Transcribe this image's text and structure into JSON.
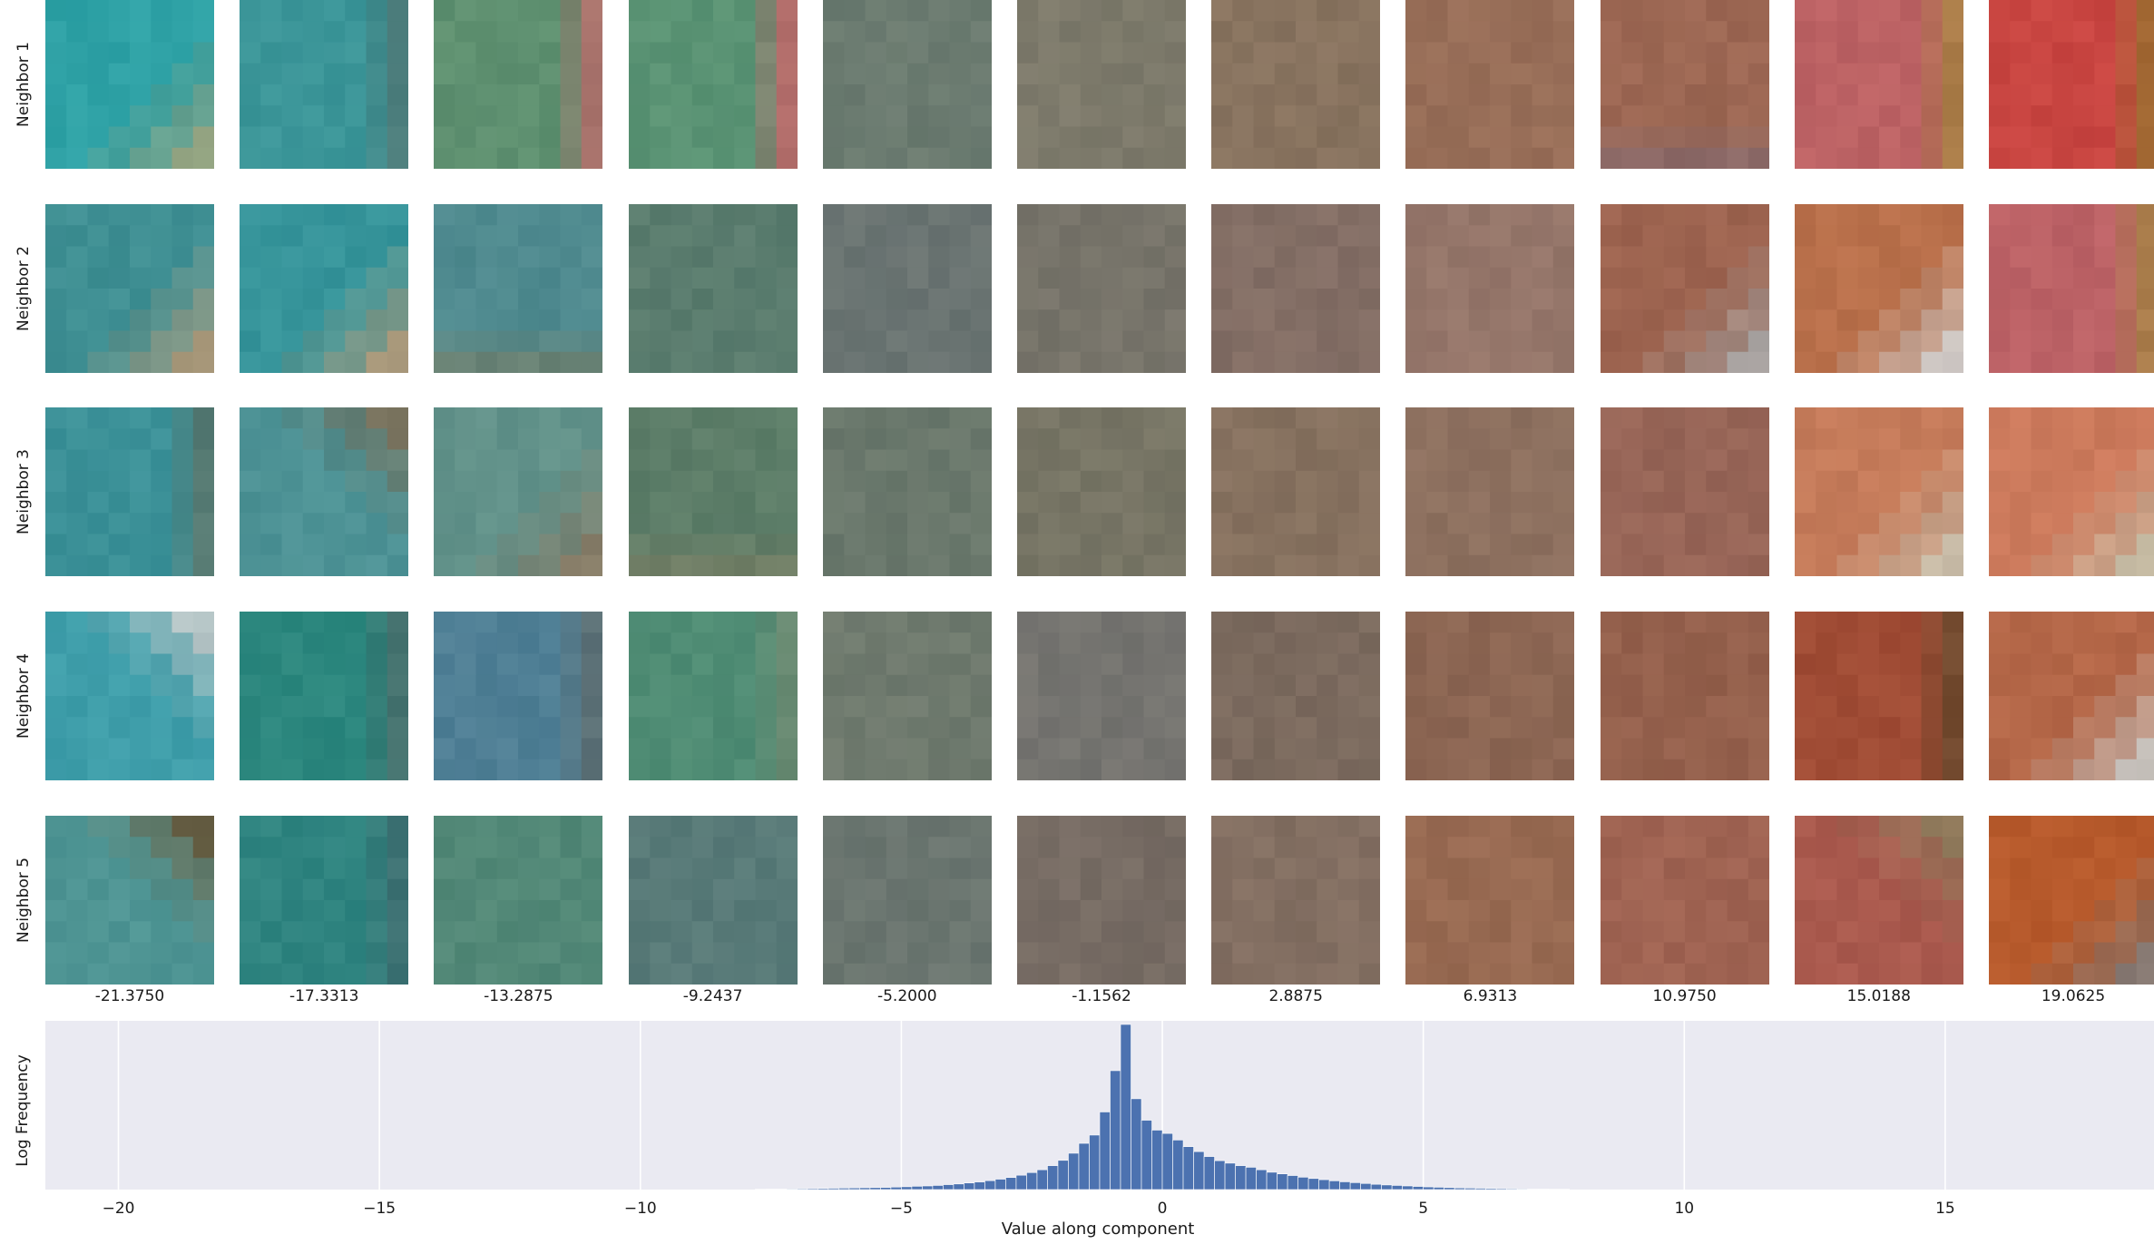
{
  "rows": [
    "Neighbor 1",
    "Neighbor 2",
    "Neighbor 3",
    "Neighbor 4",
    "Neighbor 5"
  ],
  "columns": [
    "-21.3750",
    "-17.3313",
    "-13.2875",
    "-9.2437",
    "-5.2000",
    "-1.1562",
    "2.8875",
    "6.9313",
    "10.9750",
    "15.0188",
    "19.0625"
  ],
  "tiles": [
    [
      {
        "base": "#2fa2a6",
        "accent": "#9aa07a",
        "accent_area": "bottom-right"
      },
      {
        "base": "#3b9598",
        "accent": "#4f7c7a",
        "accent_area": "right"
      },
      {
        "base": "#5e9070",
        "accent": "#b06f6b",
        "accent_area": "right"
      },
      {
        "base": "#5a9374",
        "accent": "#bd6a6a",
        "accent_area": "right"
      },
      {
        "base": "#6b7b70",
        "accent": "#6f7d72",
        "accent_area": "none"
      },
      {
        "base": "#7d7a6b",
        "accent": "#7f7b6c",
        "accent_area": "none"
      },
      {
        "base": "#88735f",
        "accent": "#8a7561",
        "accent_area": "none"
      },
      {
        "base": "#986e58",
        "accent": "#8f6b56",
        "accent_area": "none"
      },
      {
        "base": "#9c6753",
        "accent": "#7e6a76",
        "accent_area": "bottom"
      },
      {
        "base": "#bc6264",
        "accent": "#a87f45",
        "accent_area": "right"
      },
      {
        "base": "#c84541",
        "accent": "#9c6a30",
        "accent_area": "right"
      }
    ],
    [
      {
        "base": "#3f8f93",
        "accent": "#b59a78",
        "accent_area": "bottom-right"
      },
      {
        "base": "#36949a",
        "accent": "#b69a78",
        "accent_area": "bottom-right"
      },
      {
        "base": "#4f8a8f",
        "accent": "#7c7a5e",
        "accent_area": "bottom"
      },
      {
        "base": "#5a7c6e",
        "accent": "#5d7d70",
        "accent_area": "none"
      },
      {
        "base": "#6a7472",
        "accent": "#70786e",
        "accent_area": "none"
      },
      {
        "base": "#77746a",
        "accent": "#79776b",
        "accent_area": "none"
      },
      {
        "base": "#836e65",
        "accent": "#857064",
        "accent_area": "none"
      },
      {
        "base": "#95766a",
        "accent": "#8c7468",
        "accent_area": "none"
      },
      {
        "base": "#9c634f",
        "accent": "#a8a8a8",
        "accent_area": "bottom-right"
      },
      {
        "base": "#b9704b",
        "accent": "#cfcfcf",
        "accent_area": "bottom-right"
      },
      {
        "base": "#bc6266",
        "accent": "#a88048",
        "accent_area": "right"
      }
    ],
    [
      {
        "base": "#3c9198",
        "accent": "#59786f",
        "accent_area": "right"
      },
      {
        "base": "#4d9295",
        "accent": "#7a6c55",
        "accent_area": "top-right"
      },
      {
        "base": "#62928a",
        "accent": "#8a7a64",
        "accent_area": "bottom-right"
      },
      {
        "base": "#5c7d68",
        "accent": "#7e7d62",
        "accent_area": "bottom"
      },
      {
        "base": "#6a786c",
        "accent": "#6d7a6e",
        "accent_area": "none"
      },
      {
        "base": "#777565",
        "accent": "#797767",
        "accent_area": "none"
      },
      {
        "base": "#86715f",
        "accent": "#887361",
        "accent_area": "none"
      },
      {
        "base": "#8d705f",
        "accent": "#8f7261",
        "accent_area": "none"
      },
      {
        "base": "#976557",
        "accent": "#8f6a66",
        "accent_area": "none"
      },
      {
        "base": "#c57b5a",
        "accent": "#c9c3b0",
        "accent_area": "bottom-right"
      },
      {
        "base": "#cc7a5c",
        "accent": "#c8c4ad",
        "accent_area": "bottom-right"
      }
    ],
    [
      {
        "base": "#3f9eaa",
        "accent": "#c2c9c9",
        "accent_area": "top-right"
      },
      {
        "base": "#2c877e",
        "accent": "#466f6c",
        "accent_area": "right"
      },
      {
        "base": "#4f7f95",
        "accent": "#5c6e72",
        "accent_area": "right"
      },
      {
        "base": "#4f8c74",
        "accent": "#6b8a72",
        "accent_area": "right"
      },
      {
        "base": "#6f7a6e",
        "accent": "#717c70",
        "accent_area": "none"
      },
      {
        "base": "#757470",
        "accent": "#777672",
        "accent_area": "none"
      },
      {
        "base": "#7b6a5e",
        "accent": "#7d6c60",
        "accent_area": "none"
      },
      {
        "base": "#8c6653",
        "accent": "#8e6855",
        "accent_area": "none"
      },
      {
        "base": "#94604c",
        "accent": "#96624e",
        "accent_area": "none"
      },
      {
        "base": "#a04c35",
        "accent": "#6e4a2e",
        "accent_area": "right"
      },
      {
        "base": "#b46748",
        "accent": "#c9cbc8",
        "accent_area": "bottom-right"
      }
    ],
    [
      {
        "base": "#4f9594",
        "accent": "#6b5a3c",
        "accent_area": "top-right"
      },
      {
        "base": "#2f8480",
        "accent": "#3f7072",
        "accent_area": "right"
      },
      {
        "base": "#528877",
        "accent": "#548a79",
        "accent_area": "none"
      },
      {
        "base": "#587a78",
        "accent": "#5a7c7a",
        "accent_area": "none"
      },
      {
        "base": "#6b7670",
        "accent": "#6d7872",
        "accent_area": "none"
      },
      {
        "base": "#776c64",
        "accent": "#796e66",
        "accent_area": "none"
      },
      {
        "base": "#836f62",
        "accent": "#857164",
        "accent_area": "none"
      },
      {
        "base": "#986a52",
        "accent": "#9a6c54",
        "accent_area": "none"
      },
      {
        "base": "#9f6352",
        "accent": "#a16554",
        "accent_area": "none"
      },
      {
        "base": "#aa5a4e",
        "accent": "#8a7a5a",
        "accent_area": "top-right"
      },
      {
        "base": "#b75a2c",
        "accent": "#7f7a78",
        "accent_area": "bottom-right"
      }
    ]
  ],
  "chart_data": {
    "type": "bar",
    "xlabel": "Value along component",
    "ylabel": "Log Frequency",
    "xlim": [
      -21.4,
      19.0
    ],
    "ylim": [
      0,
      1.0
    ],
    "xticks": [
      -20,
      -15,
      -10,
      -5,
      0,
      5,
      10,
      15
    ],
    "xtick_labels": [
      "−20",
      "−15",
      "−10",
      "−5",
      "0",
      "5",
      "10",
      "15"
    ],
    "grid": true,
    "bar_color": "#4c72b0",
    "background": "#eaeaf2",
    "bin_width": 0.2,
    "bin_centers": [
      -7.7,
      -7.5,
      -7.3,
      -7.1,
      -6.9,
      -6.7,
      -6.5,
      -6.3,
      -6.1,
      -5.9,
      -5.7,
      -5.5,
      -5.3,
      -5.1,
      -4.9,
      -4.7,
      -4.5,
      -4.3,
      -4.1,
      -3.9,
      -3.7,
      -3.5,
      -3.3,
      -3.1,
      -2.9,
      -2.7,
      -2.5,
      -2.3,
      -2.1,
      -1.9,
      -1.7,
      -1.5,
      -1.3,
      -1.1,
      -0.9,
      -0.7,
      -0.5,
      -0.3,
      -0.1,
      0.1,
      0.3,
      0.5,
      0.7,
      0.9,
      1.1,
      1.3,
      1.5,
      1.7,
      1.9,
      2.1,
      2.3,
      2.5,
      2.7,
      2.9,
      3.1,
      3.3,
      3.5,
      3.7,
      3.9,
      4.1,
      4.3,
      4.5,
      4.7,
      4.9,
      5.1,
      5.3,
      5.5,
      5.7,
      5.9,
      6.1,
      6.3,
      6.5,
      6.7,
      6.9,
      7.1,
      7.3,
      7.5,
      7.7
    ],
    "values": [
      0.002,
      0.003,
      0.003,
      0.004,
      0.005,
      0.006,
      0.007,
      0.008,
      0.009,
      0.01,
      0.011,
      0.012,
      0.013,
      0.015,
      0.017,
      0.02,
      0.022,
      0.025,
      0.03,
      0.034,
      0.04,
      0.046,
      0.054,
      0.063,
      0.073,
      0.087,
      0.103,
      0.12,
      0.145,
      0.177,
      0.22,
      0.28,
      0.33,
      0.47,
      0.72,
      1.0,
      0.55,
      0.42,
      0.36,
      0.34,
      0.3,
      0.26,
      0.23,
      0.2,
      0.175,
      0.16,
      0.145,
      0.135,
      0.12,
      0.105,
      0.095,
      0.085,
      0.075,
      0.067,
      0.06,
      0.053,
      0.047,
      0.042,
      0.037,
      0.032,
      0.028,
      0.025,
      0.022,
      0.019,
      0.016,
      0.014,
      0.012,
      0.01,
      0.009,
      0.008,
      0.007,
      0.006,
      0.005,
      0.004,
      0.003,
      0.003,
      0.002,
      0.002
    ]
  }
}
